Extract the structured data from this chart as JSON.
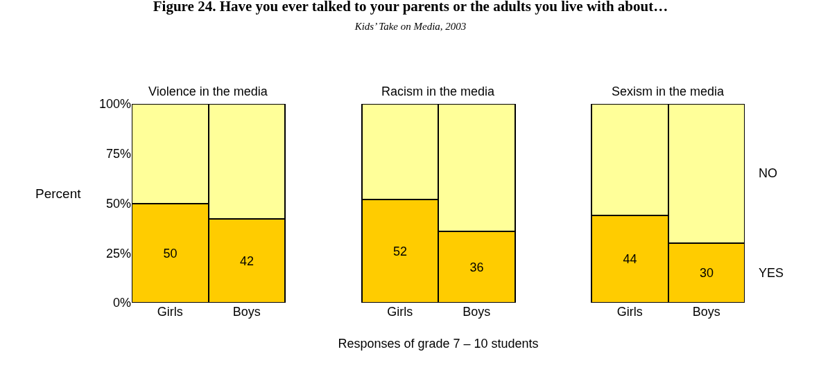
{
  "chart_data": {
    "type": "bar",
    "stacked": true,
    "title": "Figure 24. Have you ever talked to your parents or the adults you live with about…",
    "subtitle": "Kids’ Take on Media, 2003",
    "xlabel": "Responses of grade 7 – 10 students",
    "ylabel": "Percent",
    "categories": [
      "Girls",
      "Boys",
      "Girls",
      "Boys",
      "Girls",
      "Boys"
    ],
    "annotations": [
      "Violence in the media",
      "Racism in the media",
      "Sexism in the media"
    ],
    "series": [
      {
        "name": "YES",
        "color": "#ffcc00",
        "values": [
          50,
          42,
          52,
          36,
          44,
          30
        ],
        "value_labels": [
          "50",
          "42",
          "52",
          "36",
          "44",
          "30"
        ]
      },
      {
        "name": "NO",
        "color": "#ffff99",
        "values": [
          50,
          58,
          48,
          64,
          56,
          70
        ]
      }
    ],
    "ylim": [
      0,
      100
    ],
    "yticks": [
      {
        "value": 0,
        "label": "0%"
      },
      {
        "value": 25,
        "label": "25%"
      },
      {
        "value": 50,
        "label": "50%"
      },
      {
        "value": 75,
        "label": "75%"
      },
      {
        "value": 100,
        "label": "100%"
      }
    ],
    "legend": false
  }
}
